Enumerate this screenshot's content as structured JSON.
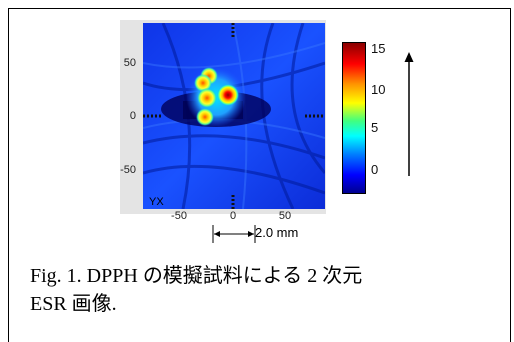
{
  "figure": {
    "x_ticks": [
      "-50",
      "0",
      "50"
    ],
    "y_ticks": [
      "50",
      "0",
      "-50"
    ],
    "colorbar_ticks": [
      "15",
      "10",
      "5",
      "0"
    ],
    "image_label": "YX",
    "scale_label": "2.0 mm",
    "colors": {
      "blue": "#0000ff",
      "yellow": "#ffff00",
      "red": "#ff0000",
      "dark_red": "#8a0000"
    }
  },
  "caption": {
    "line1": "Fig. 1.   DPPH の模擬試料による 2 次元",
    "line2": "ESR 画像."
  },
  "chart_data": {
    "type": "heatmap",
    "x_ticks": [
      -50,
      0,
      50
    ],
    "y_ticks": [
      50,
      0,
      -50
    ],
    "xlim": [
      -85,
      85
    ],
    "ylim": [
      -85,
      85
    ],
    "colorbar": {
      "range": [
        -3,
        16
      ],
      "ticks": [
        0,
        5,
        10,
        15
      ]
    },
    "hotspots": [
      {
        "x": 5,
        "y": 25,
        "value": 15
      },
      {
        "x": -20,
        "y": 38,
        "value": 11
      },
      {
        "x": -17,
        "y": 42,
        "value": 10
      },
      {
        "x": -25,
        "y": 30,
        "value": 9
      },
      {
        "x": -24,
        "y": 10,
        "value": 11
      }
    ]
  }
}
